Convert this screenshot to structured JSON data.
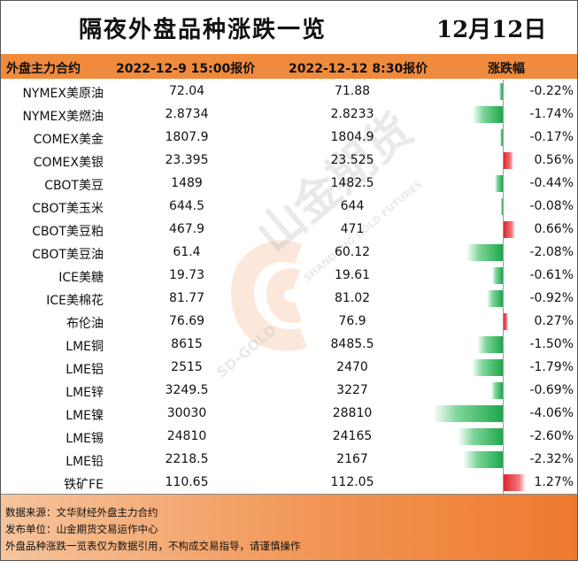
{
  "title": "隔夜外盘品种涨跌一览",
  "date": "12月12日",
  "headers": {
    "name": "外盘主力合约",
    "price_a": "2022-12-9 15:00报价",
    "price_b": "2022-12-12 8:30报价",
    "change": "涨跌幅"
  },
  "rows": [
    {
      "name": "NYMEX美原油",
      "a": "72.04",
      "b": "71.88",
      "pct": "-0.22%",
      "change": -0.22
    },
    {
      "name": "NYMEX美燃油",
      "a": "2.8734",
      "b": "2.8233",
      "pct": "-1.74%",
      "change": -1.74
    },
    {
      "name": "COMEX美金",
      "a": "1807.9",
      "b": "1804.9",
      "pct": "-0.17%",
      "change": -0.17
    },
    {
      "name": "COMEX美银",
      "a": "23.395",
      "b": "23.525",
      "pct": "0.56%",
      "change": 0.56
    },
    {
      "name": "CBOT美豆",
      "a": "1489",
      "b": "1482.5",
      "pct": "-0.44%",
      "change": -0.44
    },
    {
      "name": "CBOT美玉米",
      "a": "644.5",
      "b": "644",
      "pct": "-0.08%",
      "change": -0.08
    },
    {
      "name": "CBOT美豆粕",
      "a": "467.9",
      "b": "471",
      "pct": "0.66%",
      "change": 0.66
    },
    {
      "name": "CBOT美豆油",
      "a": "61.4",
      "b": "60.12",
      "pct": "-2.08%",
      "change": -2.08
    },
    {
      "name": "ICE美糖",
      "a": "19.73",
      "b": "19.61",
      "pct": "-0.61%",
      "change": -0.61
    },
    {
      "name": "ICE美棉花",
      "a": "81.77",
      "b": "81.02",
      "pct": "-0.92%",
      "change": -0.92
    },
    {
      "name": "布伦油",
      "a": "76.69",
      "b": "76.9",
      "pct": "0.27%",
      "change": 0.27
    },
    {
      "name": "LME铜",
      "a": "8615",
      "b": "8485.5",
      "pct": "-1.50%",
      "change": -1.5
    },
    {
      "name": "LME铝",
      "a": "2515",
      "b": "2470",
      "pct": "-1.79%",
      "change": -1.79
    },
    {
      "name": "LME锌",
      "a": "3249.5",
      "b": "3227",
      "pct": "-0.69%",
      "change": -0.69
    },
    {
      "name": "LME镍",
      "a": "30030",
      "b": "28810",
      "pct": "-4.06%",
      "change": -4.06
    },
    {
      "name": "LME锡",
      "a": "24810",
      "b": "24165",
      "pct": "-2.60%",
      "change": -2.6
    },
    {
      "name": "LME铅",
      "a": "2218.5",
      "b": "2167",
      "pct": "-2.32%",
      "change": -2.32
    },
    {
      "name": "铁矿FE",
      "a": "110.65",
      "b": "112.05",
      "pct": "1.27%",
      "change": 1.27
    }
  ],
  "footer": {
    "source": "数据来源：文华财经外盘主力合约",
    "publisher": "发布单位：山金期货交易运作中心",
    "disclaimer": "外盘品种涨跌一览表仅为数据引用，不构成交易指导，请谨慎操作"
  },
  "watermark": {
    "cn": "山金期货",
    "en_top": "SHANDONG GOLD FUTURES",
    "en_bottom": "SD-GOLD"
  },
  "colors": {
    "header_bg": "#f08a3c",
    "negative_bar": "#1ea84a",
    "positive_bar": "#e0232b"
  }
}
